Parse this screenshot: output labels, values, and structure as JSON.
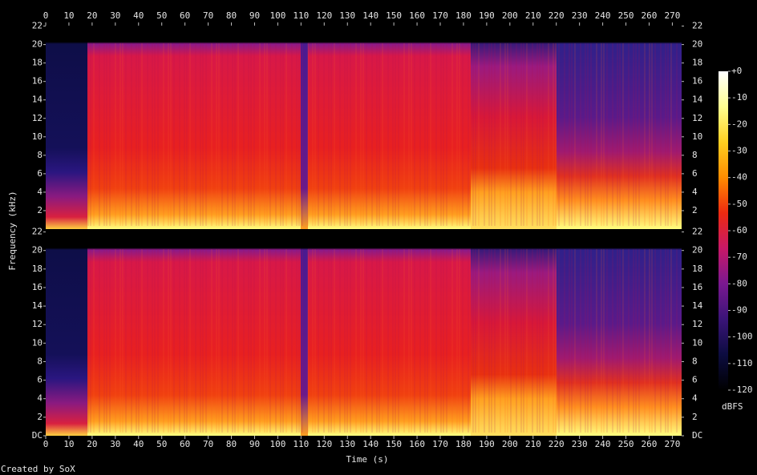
{
  "chart_data": {
    "type": "spectrogram",
    "xlabel": "Time (s)",
    "ylabel": "Frequency (kHz)",
    "colorbar_label": "dBFS",
    "credit": "Created by SoX",
    "xlim": [
      0,
      274
    ],
    "xticks": [
      0,
      10,
      20,
      30,
      40,
      50,
      60,
      70,
      80,
      90,
      100,
      110,
      120,
      130,
      140,
      150,
      160,
      170,
      180,
      190,
      200,
      210,
      220,
      230,
      240,
      250,
      260,
      270
    ],
    "channels": [
      {
        "ylim": [
          0,
          22.05
        ],
        "yticks": [
          2,
          4,
          6,
          8,
          10,
          12,
          14,
          16,
          18,
          20,
          22
        ]
      },
      {
        "ylim": [
          0,
          22.05
        ],
        "yticks": [
          {
            "value": 0,
            "label": "DC"
          },
          2,
          4,
          6,
          8,
          10,
          12,
          14,
          16,
          18,
          20,
          22
        ]
      }
    ],
    "clim": [
      -120,
      0
    ],
    "cticks": [
      {
        "value": 0,
        "label": "+0"
      },
      -10,
      -20,
      -30,
      -40,
      -50,
      -60,
      -70,
      -80,
      -90,
      -100,
      -110,
      -120
    ],
    "colormap": [
      "#000000",
      "#0c0c40",
      "#3a1478",
      "#7a1890",
      "#c81868",
      "#ee2a10",
      "#ff8c00",
      "#ffd020",
      "#ffff90",
      "#ffffff"
    ]
  }
}
